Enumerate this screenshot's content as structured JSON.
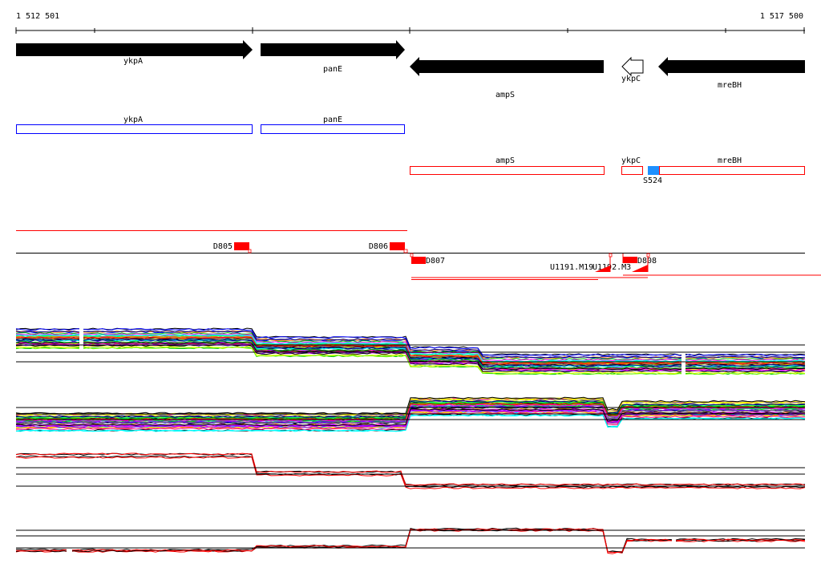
{
  "ruler": {
    "start_label": "1 512 501",
    "end_label": "1 517 500"
  },
  "genes_track": [
    {
      "name": "ykpA",
      "strand": "+",
      "fill": "#000000"
    },
    {
      "name": "panE",
      "strand": "+",
      "fill": "#000000"
    },
    {
      "name": "ampS",
      "strand": "-",
      "fill": "#000000"
    },
    {
      "name": "ykpC",
      "strand": "-",
      "fill": "#ffffff"
    },
    {
      "name": "mreBH",
      "strand": "-",
      "fill": "#000000"
    }
  ],
  "forward_boxes": [
    {
      "name": "ykpA",
      "color": "#0000ff"
    },
    {
      "name": "panE",
      "color": "#0000ff"
    }
  ],
  "reverse_boxes": [
    {
      "name": "ampS",
      "color": "#ff0000"
    },
    {
      "name": "ykpC",
      "color": "#ff0000"
    },
    {
      "name": "mreBH",
      "color": "#ff0000"
    }
  ],
  "site": {
    "name": "S524",
    "color": "#1e90ff"
  },
  "features": {
    "d805": "D805",
    "d806": "D806",
    "d807": "D807",
    "d808": "D808",
    "u1191": "U1191.M19",
    "u1192": "U1192.M3"
  },
  "colors": {
    "feature": "#ff0000",
    "gene_fwd": "#0000ff",
    "gene_rev": "#ff0000"
  }
}
